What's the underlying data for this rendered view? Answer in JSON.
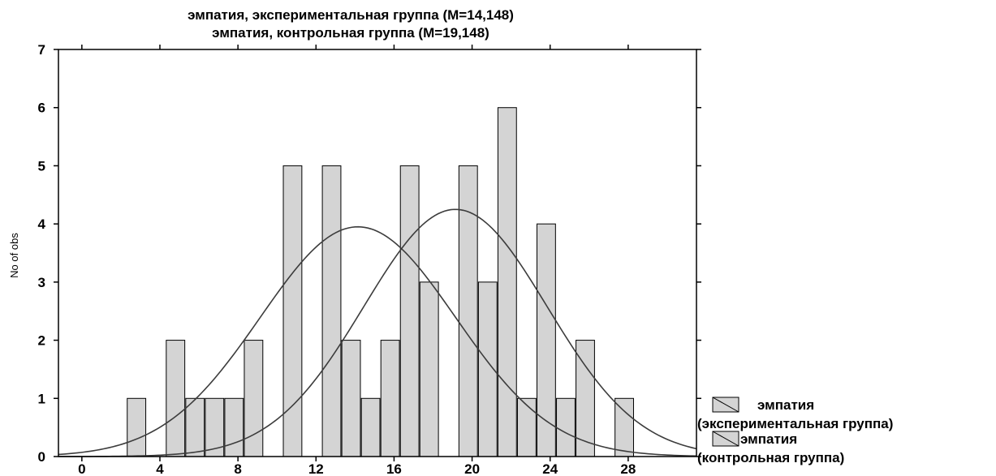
{
  "chart_data": {
    "type": "bar",
    "title_lines": [
      "эмпатия, экспериментальная группа (M=14,148)",
      "эмпатия, контрольная группа (M=19,148)"
    ],
    "xlabel": "",
    "ylabel": "No of obs",
    "xlim": [
      -1.2,
      31.5
    ],
    "ylim": [
      0,
      7
    ],
    "x_ticks": [
      "0",
      "4",
      "8",
      "12",
      "16",
      "20",
      "24",
      "28"
    ],
    "y_ticks": [
      "0",
      "1",
      "2",
      "3",
      "4",
      "5",
      "6",
      "7"
    ],
    "bar_color": "#d4d4d4",
    "bars": [
      {
        "x": 2.8,
        "value": 1
      },
      {
        "x": 4.8,
        "value": 2
      },
      {
        "x": 5.8,
        "value": 1
      },
      {
        "x": 6.8,
        "value": 1
      },
      {
        "x": 7.8,
        "value": 1
      },
      {
        "x": 8.8,
        "value": 2
      },
      {
        "x": 10.8,
        "value": 5
      },
      {
        "x": 12.8,
        "value": 5
      },
      {
        "x": 13.8,
        "value": 2
      },
      {
        "x": 14.8,
        "value": 1
      },
      {
        "x": 15.8,
        "value": 2
      },
      {
        "x": 16.8,
        "value": 5
      },
      {
        "x": 17.8,
        "value": 3
      },
      {
        "x": 19.8,
        "value": 5
      },
      {
        "x": 20.8,
        "value": 3
      },
      {
        "x": 21.8,
        "value": 6
      },
      {
        "x": 22.8,
        "value": 1
      },
      {
        "x": 23.8,
        "value": 4
      },
      {
        "x": 24.8,
        "value": 1
      },
      {
        "x": 25.8,
        "value": 2
      },
      {
        "x": 27.8,
        "value": 1
      }
    ],
    "series": [
      {
        "name": "эмпатия\n(экспериментальная группа)",
        "mean": 14.148,
        "peak": 3.95,
        "sd": 5.0
      },
      {
        "name": "эмпатия\n(контрольная группа)",
        "mean": 19.148,
        "peak": 4.25,
        "sd": 4.7
      }
    ],
    "legend": {
      "position": "bottom-right",
      "items": [
        {
          "line1": "эмпатия",
          "line2": "(экспериментальная группа)"
        },
        {
          "line1": "эмпатия",
          "line2": "(контрольная группа)"
        }
      ]
    },
    "grid": false
  }
}
